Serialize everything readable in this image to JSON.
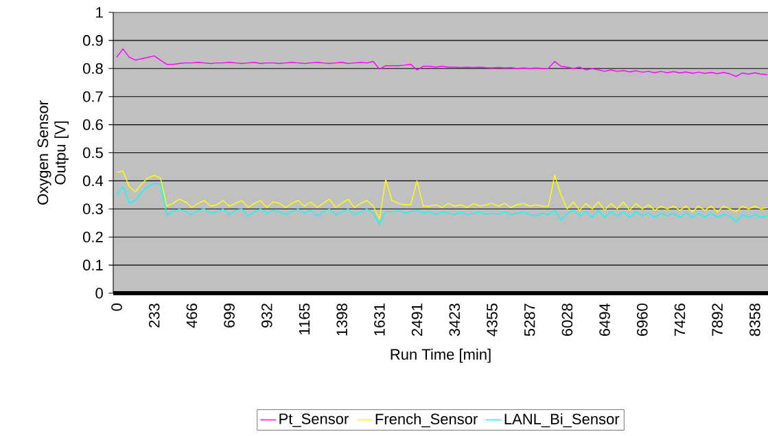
{
  "chart_data": {
    "type": "line",
    "xlabel": "Run Time [min]",
    "ylabel": "Oxygen Sensor Outpu [V]",
    "categories": [
      "0",
      null,
      null,
      null,
      null,
      null,
      "233",
      null,
      null,
      null,
      null,
      null,
      "466",
      null,
      null,
      null,
      null,
      null,
      "699",
      null,
      null,
      null,
      null,
      null,
      "932",
      null,
      null,
      null,
      null,
      null,
      "1165",
      null,
      null,
      null,
      null,
      null,
      "1398",
      null,
      null,
      null,
      null,
      null,
      "1631",
      null,
      null,
      null,
      null,
      null,
      "2491",
      null,
      null,
      null,
      null,
      null,
      "3423",
      null,
      null,
      null,
      null,
      null,
      "4355",
      null,
      null,
      null,
      null,
      null,
      "5287",
      null,
      null,
      null,
      null,
      null,
      "6028",
      null,
      null,
      null,
      null,
      null,
      "6494",
      null,
      null,
      null,
      null,
      null,
      "6960",
      null,
      null,
      null,
      null,
      null,
      "7426",
      null,
      null,
      null,
      null,
      null,
      "7892",
      null,
      null,
      null,
      null,
      null,
      "8358",
      null,
      null
    ],
    "series": [
      {
        "name": "Pt_Sensor",
        "color": "#ff00ff",
        "values": [
          0.84,
          0.87,
          0.84,
          0.83,
          0.835,
          0.84,
          0.845,
          0.83,
          0.815,
          0.815,
          0.818,
          0.82,
          0.82,
          0.822,
          0.82,
          0.818,
          0.82,
          0.82,
          0.822,
          0.82,
          0.818,
          0.82,
          0.822,
          0.818,
          0.82,
          0.82,
          0.818,
          0.82,
          0.822,
          0.82,
          0.818,
          0.82,
          0.822,
          0.82,
          0.818,
          0.82,
          0.822,
          0.818,
          0.82,
          0.822,
          0.82,
          0.825,
          0.798,
          0.81,
          0.81,
          0.81,
          0.812,
          0.815,
          0.795,
          0.808,
          0.808,
          0.805,
          0.808,
          0.805,
          0.805,
          0.803,
          0.805,
          0.803,
          0.805,
          0.803,
          0.802,
          0.804,
          0.802,
          0.803,
          0.8,
          0.802,
          0.8,
          0.802,
          0.8,
          0.801,
          0.825,
          0.808,
          0.805,
          0.8,
          0.805,
          0.795,
          0.8,
          0.795,
          0.79,
          0.795,
          0.79,
          0.793,
          0.788,
          0.792,
          0.787,
          0.79,
          0.785,
          0.79,
          0.785,
          0.789,
          0.784,
          0.788,
          0.783,
          0.787,
          0.783,
          0.786,
          0.782,
          0.786,
          0.781,
          0.772,
          0.784,
          0.78,
          0.785,
          0.78,
          0.778
        ]
      },
      {
        "name": "French_Sensor",
        "color": "#ffff00",
        "values": [
          0.43,
          0.435,
          0.38,
          0.36,
          0.39,
          0.41,
          0.42,
          0.41,
          0.31,
          0.32,
          0.335,
          0.325,
          0.305,
          0.32,
          0.33,
          0.31,
          0.315,
          0.33,
          0.31,
          0.32,
          0.33,
          0.305,
          0.32,
          0.33,
          0.305,
          0.325,
          0.32,
          0.305,
          0.32,
          0.33,
          0.31,
          0.325,
          0.305,
          0.32,
          0.335,
          0.305,
          0.32,
          0.335,
          0.305,
          0.32,
          0.33,
          0.31,
          0.265,
          0.405,
          0.33,
          0.32,
          0.315,
          0.315,
          0.4,
          0.31,
          0.31,
          0.315,
          0.305,
          0.32,
          0.31,
          0.315,
          0.305,
          0.32,
          0.31,
          0.315,
          0.32,
          0.31,
          0.32,
          0.305,
          0.315,
          0.32,
          0.31,
          0.315,
          0.31,
          0.31,
          0.42,
          0.35,
          0.3,
          0.325,
          0.295,
          0.32,
          0.3,
          0.325,
          0.295,
          0.32,
          0.3,
          0.325,
          0.295,
          0.32,
          0.3,
          0.315,
          0.295,
          0.31,
          0.3,
          0.31,
          0.295,
          0.31,
          0.29,
          0.31,
          0.295,
          0.31,
          0.29,
          0.31,
          0.3,
          0.29,
          0.31,
          0.3,
          0.31,
          0.3,
          0.305
        ]
      },
      {
        "name": "LANL_Bi_Sensor",
        "color": "#00ffff",
        "values": [
          0.35,
          0.38,
          0.32,
          0.33,
          0.36,
          0.38,
          0.39,
          0.39,
          0.28,
          0.29,
          0.3,
          0.29,
          0.28,
          0.295,
          0.3,
          0.285,
          0.29,
          0.3,
          0.28,
          0.295,
          0.3,
          0.275,
          0.29,
          0.3,
          0.285,
          0.295,
          0.29,
          0.28,
          0.29,
          0.3,
          0.285,
          0.295,
          0.275,
          0.29,
          0.3,
          0.28,
          0.29,
          0.3,
          0.28,
          0.29,
          0.3,
          0.285,
          0.245,
          0.29,
          0.29,
          0.295,
          0.285,
          0.29,
          0.295,
          0.285,
          0.29,
          0.28,
          0.29,
          0.285,
          0.28,
          0.29,
          0.28,
          0.285,
          0.29,
          0.28,
          0.285,
          0.28,
          0.29,
          0.28,
          0.285,
          0.29,
          0.28,
          0.275,
          0.285,
          0.28,
          0.295,
          0.26,
          0.285,
          0.295,
          0.275,
          0.29,
          0.27,
          0.295,
          0.27,
          0.29,
          0.275,
          0.29,
          0.27,
          0.29,
          0.275,
          0.285,
          0.27,
          0.285,
          0.275,
          0.285,
          0.27,
          0.285,
          0.27,
          0.285,
          0.27,
          0.285,
          0.27,
          0.28,
          0.275,
          0.255,
          0.28,
          0.27,
          0.28,
          0.27,
          0.275
        ]
      }
    ],
    "ylim": [
      0,
      1
    ],
    "yticks": [
      0,
      0.1,
      0.2,
      0.3,
      0.4,
      0.5,
      0.6,
      0.7,
      0.8,
      0.9,
      1
    ],
    "grid": "y",
    "legend": "bottom",
    "marker": "none",
    "line_style": "solid"
  }
}
